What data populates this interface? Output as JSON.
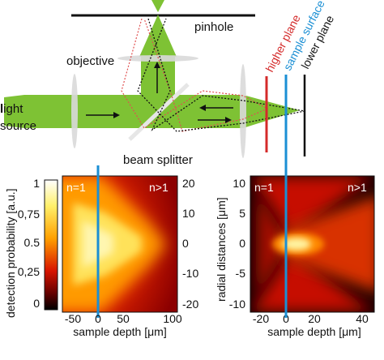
{
  "diagram": {
    "labels": {
      "pinhole": "pinhole",
      "objective": "objective",
      "light_bold": "l",
      "light_rest": "ight",
      "source": "source",
      "beam_splitter": "beam splitter",
      "higher_plane": "higher plane",
      "sample_surface": "sample surface",
      "lower_plane": "lower plane"
    },
    "colors": {
      "beam_green": "#7ec234",
      "lens_gray": "#d9d9d9",
      "higher_plane": "#d42a2a",
      "sample_surface": "#1b8fd4",
      "lower_plane": "#111111",
      "red_dotted": "#e05050"
    }
  },
  "colorbar": {
    "label": "detection probability [a.u.]",
    "ticks": [
      "1",
      "0,75",
      "0.5",
      "0,25",
      "0"
    ]
  },
  "left_plot": {
    "n1_label": "n=1",
    "n2_label": "n>1",
    "x_label": "sample depth [μm]",
    "x_ticks": [
      "-50",
      "0",
      "50",
      "100"
    ],
    "y_ticks_right": [
      "20",
      "10",
      "0",
      "-10",
      "-20"
    ],
    "y_label": "radial distances [μm]"
  },
  "right_plot": {
    "n1_label": "n=1",
    "n2_label": "n>1",
    "x_label": "sample depth [μm]",
    "x_ticks": [
      "-20",
      "0",
      "20",
      "40"
    ],
    "y_ticks_left": [
      "10",
      "5",
      "0",
      "-5",
      "-10"
    ]
  }
}
